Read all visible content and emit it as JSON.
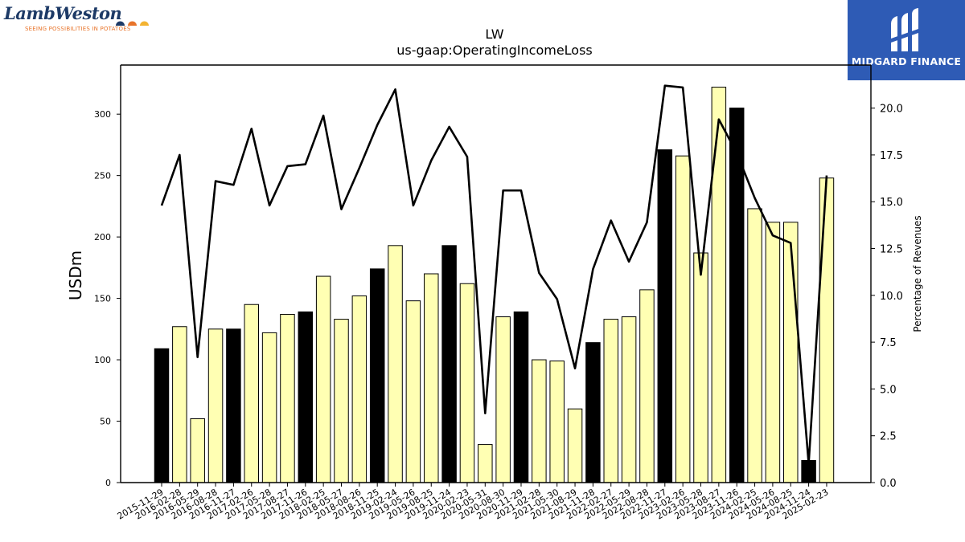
{
  "logos": {
    "left_name": "LambWeston",
    "left_tagline": "SEEING POSSIBILITIES IN POTATOES",
    "left_dot_colors": [
      "#1d3a66",
      "#e8742a",
      "#f3b331"
    ],
    "right_name": "MIDGARD FINANCE",
    "right_bg": "#2e5bb5"
  },
  "chart_data": {
    "type": "bar",
    "title": "LW",
    "subtitle": "us-gaap:OperatingIncomeLoss",
    "ylabel": "USDm",
    "y2label": "Percentage of Revenues",
    "ylim": [
      0,
      340
    ],
    "y2lim": [
      0,
      22.3
    ],
    "yticks": [
      "0",
      "50",
      "100",
      "150",
      "200",
      "250",
      "300"
    ],
    "y2ticks": [
      "0.0",
      "2.5",
      "5.0",
      "7.5",
      "10.0",
      "12.5",
      "15.0",
      "17.5",
      "20.0"
    ],
    "categories": [
      "2015-11-29",
      "2016-02-28",
      "2016-05-29",
      "2016-08-28",
      "2016-11-27",
      "2017-02-26",
      "2017-05-28",
      "2017-08-27",
      "2017-11-26",
      "2018-02-25",
      "2018-05-27",
      "2018-08-26",
      "2018-11-25",
      "2019-02-24",
      "2019-05-26",
      "2019-08-25",
      "2019-11-24",
      "2020-02-23",
      "2020-05-31",
      "2020-08-30",
      "2020-11-29",
      "2021-02-28",
      "2021-05-30",
      "2021-08-29",
      "2021-11-28",
      "2022-02-27",
      "2022-05-29",
      "2022-08-28",
      "2022-11-27",
      "2023-02-26",
      "2023-05-28",
      "2023-08-27",
      "2023-11-26",
      "2024-02-25",
      "2024-05-26",
      "2024-08-25",
      "2024-11-24",
      "2025-02-23"
    ],
    "bars": [
      109,
      127,
      52,
      125,
      125,
      145,
      122,
      137,
      139,
      168,
      133,
      152,
      174,
      193,
      148,
      170,
      193,
      162,
      31,
      135,
      139,
      100,
      99,
      60,
      114,
      133,
      135,
      157,
      271,
      266,
      187,
      322,
      305,
      223,
      212,
      212,
      18,
      248
    ],
    "bar_highlight": [
      true,
      false,
      false,
      false,
      true,
      false,
      false,
      false,
      true,
      false,
      false,
      false,
      true,
      false,
      false,
      false,
      true,
      false,
      false,
      false,
      true,
      false,
      false,
      false,
      true,
      false,
      false,
      false,
      true,
      false,
      false,
      false,
      true,
      false,
      false,
      false,
      true,
      false
    ],
    "line_pct": [
      14.8,
      17.5,
      6.7,
      16.1,
      15.9,
      18.9,
      14.8,
      16.9,
      17.0,
      19.6,
      14.6,
      16.8,
      19.1,
      21.0,
      14.8,
      17.2,
      19.0,
      17.4,
      3.7,
      15.6,
      15.6,
      11.2,
      9.8,
      6.1,
      11.4,
      14.0,
      11.8,
      13.9,
      21.2,
      21.1,
      11.1,
      19.4,
      17.6,
      15.2,
      13.2,
      12.8,
      1.0,
      16.4
    ],
    "colors": {
      "highlight": "#000000",
      "normal": "#ffffb3",
      "line": "#000000"
    }
  }
}
